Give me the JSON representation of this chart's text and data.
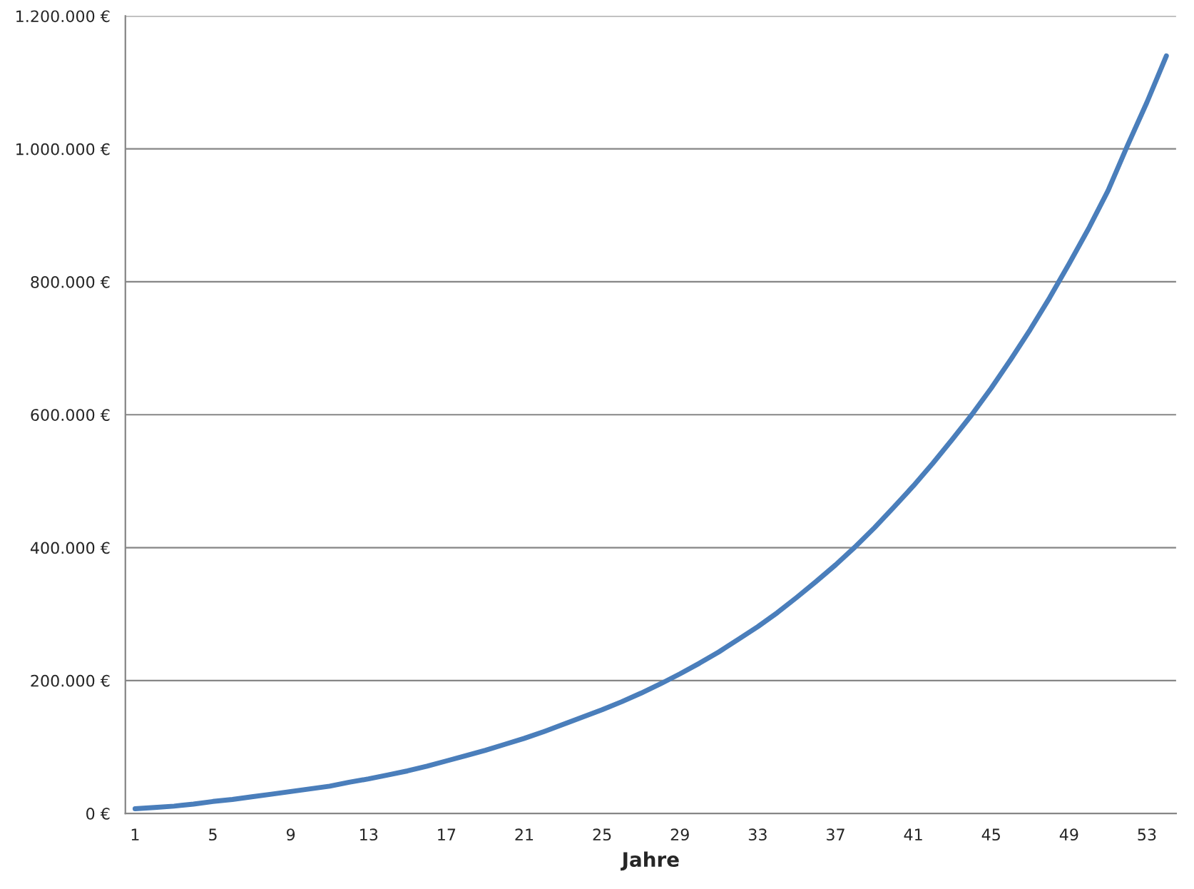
{
  "chart_data": {
    "type": "line",
    "xlabel": "Jahre",
    "categories": [
      "1",
      null,
      null,
      null,
      "5",
      null,
      null,
      null,
      "9",
      null,
      null,
      null,
      "13",
      null,
      null,
      null,
      "17",
      null,
      null,
      null,
      "21",
      null,
      null,
      null,
      "25",
      null,
      null,
      null,
      "29",
      null,
      null,
      null,
      "33",
      null,
      null,
      null,
      "37",
      null,
      null,
      null,
      "41",
      null,
      null,
      null,
      "45",
      null,
      null,
      null,
      "49",
      null,
      null,
      null,
      "53",
      null
    ],
    "series": [
      {
        "color": "#4a7ebb",
        "values": [
          7000,
          9000,
          11000,
          14000,
          18000,
          21000,
          25000,
          29000,
          33000,
          37000,
          41000,
          47000,
          52000,
          58000,
          64000,
          71000,
          79000,
          87000,
          95000,
          104000,
          113000,
          123000,
          134000,
          145000,
          156000,
          168000,
          181000,
          195000,
          210000,
          226000,
          243000,
          262000,
          281000,
          302000,
          325000,
          349000,
          374000,
          401000,
          430000,
          461000,
          493000,
          527000,
          563000,
          600000,
          640000,
          683000,
          728000,
          776000,
          827000,
          880000,
          937000,
          1005000,
          1070000,
          1140000
        ]
      }
    ],
    "ylim": [
      0,
      1200000
    ],
    "yticks": [
      {
        "value": 0,
        "label": "0 €"
      },
      {
        "value": 200000,
        "label": "200.000 €"
      },
      {
        "value": 400000,
        "label": "400.000 €"
      },
      {
        "value": 600000,
        "label": "600.000 €"
      },
      {
        "value": 800000,
        "label": "800.000 €"
      },
      {
        "value": 1000000,
        "label": "1.000.000 €"
      },
      {
        "value": 1200000,
        "label": "1.200.000 €"
      }
    ],
    "grid": "y",
    "marker": "none",
    "line_style": "solid"
  }
}
